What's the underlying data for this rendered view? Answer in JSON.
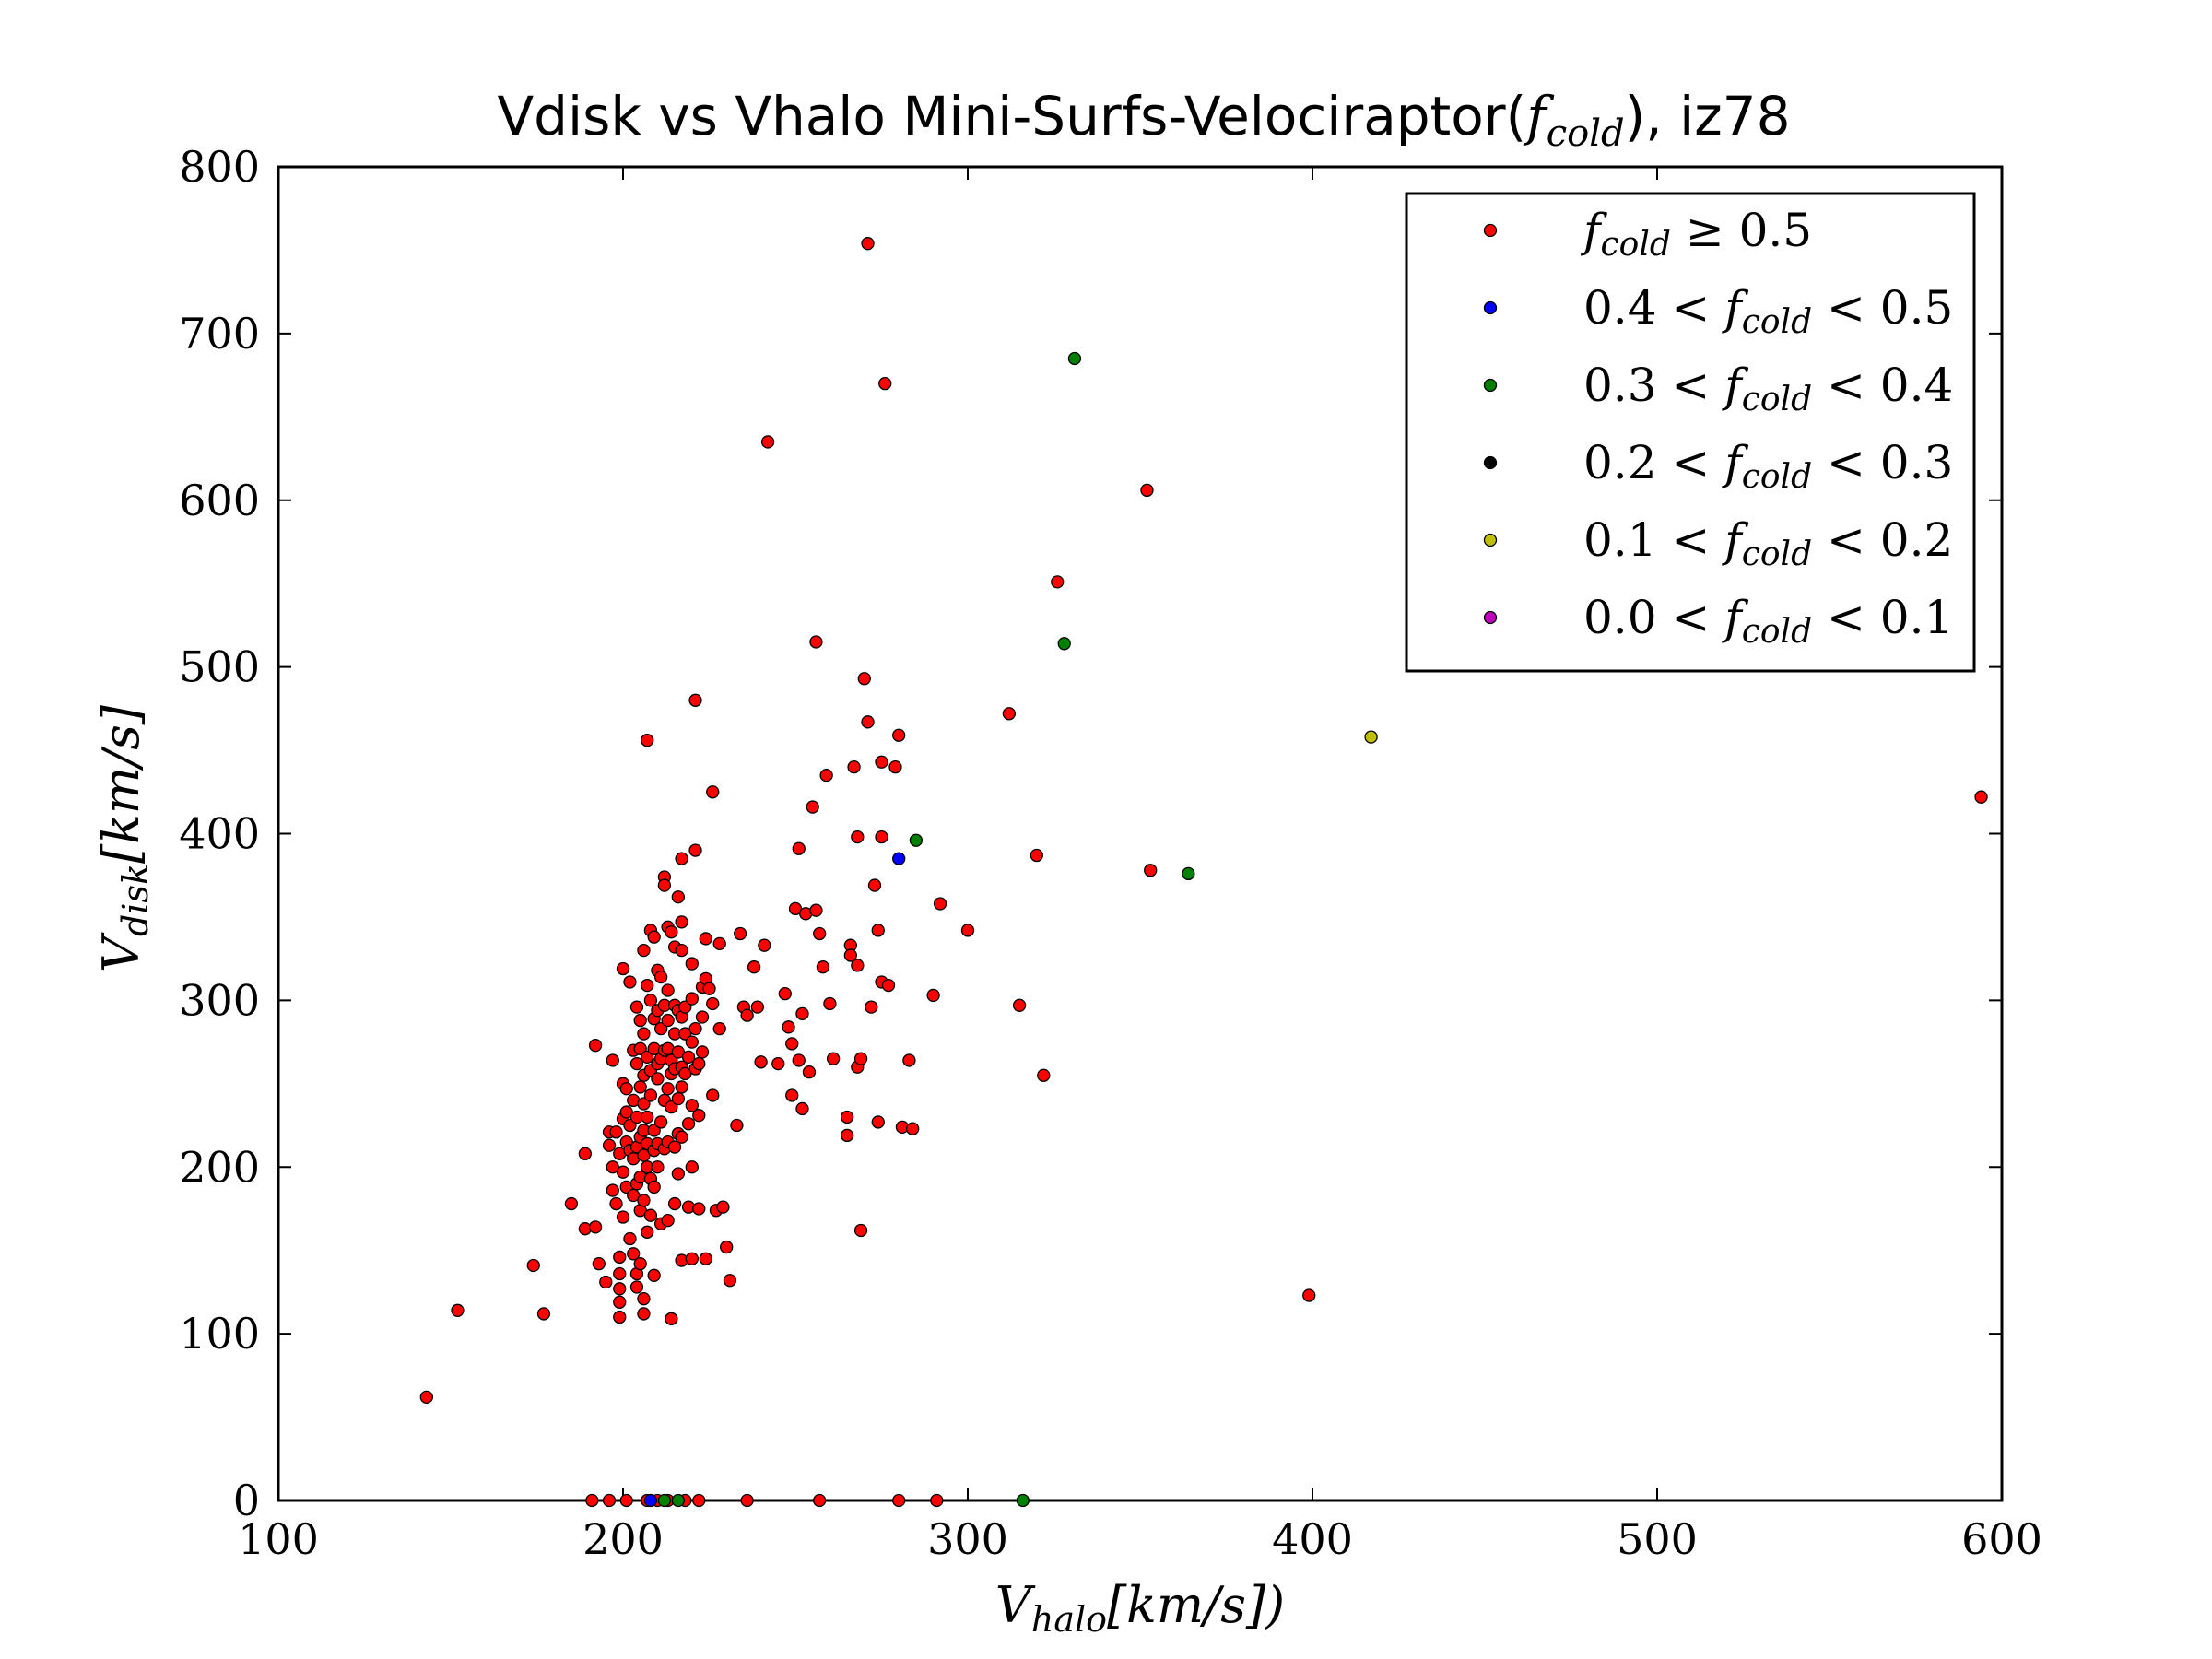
{
  "chart_data": {
    "type": "scatter",
    "title": {
      "prefix": "Vdisk vs Vhalo Mini-Surfs-Velociraptor(",
      "var": "f",
      "sub": "cold",
      "suffix": "), iz78"
    },
    "xlabel": {
      "var": "V",
      "sub": "halo",
      "unit": "[km/s])"
    },
    "ylabel": {
      "var": "V",
      "sub": "disk",
      "unit": "[km/s]"
    },
    "xlim": [
      100,
      600
    ],
    "ylim": [
      0,
      800
    ],
    "xticks": [
      "100",
      "200",
      "300",
      "400",
      "500",
      "600"
    ],
    "yticks": [
      "0",
      "100",
      "200",
      "300",
      "400",
      "500",
      "600",
      "700",
      "800"
    ],
    "xtick_values": [
      100,
      200,
      300,
      400,
      500,
      600
    ],
    "ytick_values": [
      0,
      100,
      200,
      300,
      400,
      500,
      600,
      700,
      800
    ],
    "grid": false,
    "legend_position": "top-right",
    "series": [
      {
        "name": "fcold ≥ 0.5",
        "label": {
          "pre": "",
          "var": "f",
          "sub": "cold",
          "post": " ≥ 0.5"
        },
        "color": "#ff0000",
        "points": [
          [
            143,
            62
          ],
          [
            152,
            114
          ],
          [
            174,
            141
          ],
          [
            177,
            112
          ],
          [
            185,
            178
          ],
          [
            189,
            163
          ],
          [
            189,
            208
          ],
          [
            192,
            164
          ],
          [
            192,
            273
          ],
          [
            193,
            142
          ],
          [
            195,
            131
          ],
          [
            196,
            221
          ],
          [
            196,
            213
          ],
          [
            197,
            264
          ],
          [
            197,
            200
          ],
          [
            197,
            186
          ],
          [
            198,
            178
          ],
          [
            198,
            221
          ],
          [
            199,
            208
          ],
          [
            199,
            146
          ],
          [
            199,
            136
          ],
          [
            199,
            127
          ],
          [
            199,
            119
          ],
          [
            199,
            110
          ],
          [
            200,
            319
          ],
          [
            200,
            250
          ],
          [
            200,
            229
          ],
          [
            200,
            197
          ],
          [
            200,
            170
          ],
          [
            201,
            247
          ],
          [
            201,
            233
          ],
          [
            201,
            215
          ],
          [
            201,
            188
          ],
          [
            202,
            311
          ],
          [
            202,
            225
          ],
          [
            202,
            210
          ],
          [
            202,
            157
          ],
          [
            203,
            270
          ],
          [
            203,
            240
          ],
          [
            203,
            205
          ],
          [
            203,
            183
          ],
          [
            203,
            148
          ],
          [
            204,
            296
          ],
          [
            204,
            262
          ],
          [
            204,
            230
          ],
          [
            204,
            212
          ],
          [
            204,
            190
          ],
          [
            204,
            136
          ],
          [
            204,
            128
          ],
          [
            205,
            288
          ],
          [
            205,
            271
          ],
          [
            205,
            248
          ],
          [
            205,
            218
          ],
          [
            205,
            194
          ],
          [
            205,
            174
          ],
          [
            205,
            142
          ],
          [
            206,
            330
          ],
          [
            206,
            280
          ],
          [
            206,
            255
          ],
          [
            206,
            238
          ],
          [
            206,
            222
          ],
          [
            206,
            207
          ],
          [
            206,
            180
          ],
          [
            206,
            121
          ],
          [
            206,
            112
          ],
          [
            207,
            456
          ],
          [
            207,
            309
          ],
          [
            207,
            266
          ],
          [
            207,
            230
          ],
          [
            207,
            214
          ],
          [
            207,
            200
          ],
          [
            207,
            161
          ],
          [
            208,
            342
          ],
          [
            208,
            300
          ],
          [
            208,
            258
          ],
          [
            208,
            243
          ],
          [
            208,
            193
          ],
          [
            208,
            171
          ],
          [
            209,
            338
          ],
          [
            209,
            289
          ],
          [
            209,
            271
          ],
          [
            209,
            222
          ],
          [
            209,
            210
          ],
          [
            209,
            188
          ],
          [
            209,
            135
          ],
          [
            210,
            318
          ],
          [
            210,
            294
          ],
          [
            210,
            262
          ],
          [
            210,
            253
          ],
          [
            210,
            214
          ],
          [
            210,
            200
          ],
          [
            211,
            314
          ],
          [
            211,
            283
          ],
          [
            211,
            265
          ],
          [
            211,
            227
          ],
          [
            211,
            166
          ],
          [
            212,
            374
          ],
          [
            212,
            369
          ],
          [
            212,
            297
          ],
          [
            212,
            270
          ],
          [
            212,
            240
          ],
          [
            212,
            211
          ],
          [
            213,
            344
          ],
          [
            213,
            306
          ],
          [
            213,
            288
          ],
          [
            213,
            271
          ],
          [
            213,
            247
          ],
          [
            213,
            215
          ],
          [
            213,
            168
          ],
          [
            214,
            341
          ],
          [
            214,
            264
          ],
          [
            214,
            256
          ],
          [
            214,
            236
          ],
          [
            214,
            109
          ],
          [
            215,
            332
          ],
          [
            215,
            297
          ],
          [
            215,
            280
          ],
          [
            215,
            259
          ],
          [
            215,
            212
          ],
          [
            215,
            178
          ],
          [
            216,
            362
          ],
          [
            216,
            294
          ],
          [
            216,
            269
          ],
          [
            216,
            241
          ],
          [
            216,
            220
          ],
          [
            216,
            196
          ],
          [
            217,
            385
          ],
          [
            217,
            347
          ],
          [
            217,
            330
          ],
          [
            217,
            290
          ],
          [
            217,
            260
          ],
          [
            217,
            248
          ],
          [
            217,
            218
          ],
          [
            217,
            144
          ],
          [
            218,
            296
          ],
          [
            218,
            280
          ],
          [
            218,
            256
          ],
          [
            219,
            266
          ],
          [
            219,
            226
          ],
          [
            219,
            176
          ],
          [
            220,
            322
          ],
          [
            220,
            301
          ],
          [
            220,
            275
          ],
          [
            220,
            237
          ],
          [
            220,
            200
          ],
          [
            220,
            145
          ],
          [
            221,
            480
          ],
          [
            221,
            390
          ],
          [
            221,
            283
          ],
          [
            221,
            259
          ],
          [
            222,
            262
          ],
          [
            222,
            231
          ],
          [
            222,
            175
          ],
          [
            223,
            308
          ],
          [
            223,
            290
          ],
          [
            223,
            269
          ],
          [
            224,
            337
          ],
          [
            224,
            313
          ],
          [
            224,
            145
          ],
          [
            225,
            307
          ],
          [
            226,
            425
          ],
          [
            226,
            298
          ],
          [
            226,
            243
          ],
          [
            227,
            174
          ],
          [
            228,
            334
          ],
          [
            228,
            283
          ],
          [
            229,
            176
          ],
          [
            230,
            152
          ],
          [
            231,
            132
          ],
          [
            233,
            225
          ],
          [
            234,
            340
          ],
          [
            235,
            296
          ],
          [
            236,
            291
          ],
          [
            238,
            320
          ],
          [
            239,
            296
          ],
          [
            240,
            263
          ],
          [
            241,
            333
          ],
          [
            242,
            635
          ],
          [
            245,
            262
          ],
          [
            247,
            304
          ],
          [
            248,
            284
          ],
          [
            249,
            274
          ],
          [
            249,
            243
          ],
          [
            250,
            355
          ],
          [
            251,
            264
          ],
          [
            251,
            391
          ],
          [
            252,
            292
          ],
          [
            252,
            235
          ],
          [
            253,
            352
          ],
          [
            254,
            257
          ],
          [
            255,
            416
          ],
          [
            256,
            354
          ],
          [
            256,
            515
          ],
          [
            257,
            340
          ],
          [
            258,
            320
          ],
          [
            259,
            435
          ],
          [
            260,
            298
          ],
          [
            261,
            265
          ],
          [
            265,
            230
          ],
          [
            265,
            219
          ],
          [
            266,
            333
          ],
          [
            266,
            327
          ],
          [
            267,
            440
          ],
          [
            268,
            398
          ],
          [
            268,
            260
          ],
          [
            268,
            321
          ],
          [
            269,
            162
          ],
          [
            269,
            265
          ],
          [
            270,
            493
          ],
          [
            271,
            467
          ],
          [
            271,
            754
          ],
          [
            272,
            296
          ],
          [
            273,
            369
          ],
          [
            274,
            342
          ],
          [
            274,
            227
          ],
          [
            275,
            443
          ],
          [
            275,
            398
          ],
          [
            275,
            311
          ],
          [
            276,
            670
          ],
          [
            277,
            309
          ],
          [
            279,
            440
          ],
          [
            280,
            459
          ],
          [
            281,
            224
          ],
          [
            283,
            264
          ],
          [
            284,
            223
          ],
          [
            290,
            303
          ],
          [
            292,
            358
          ],
          [
            300,
            342
          ],
          [
            312,
            472
          ],
          [
            315,
            297
          ],
          [
            320,
            387
          ],
          [
            322,
            255
          ],
          [
            326,
            551
          ],
          [
            352,
            606
          ],
          [
            353,
            378
          ],
          [
            399,
            123
          ],
          [
            594,
            422
          ]
        ],
        "zero_points": [
          191,
          196,
          201,
          207,
          210,
          213,
          218,
          222,
          236,
          257,
          280,
          291
        ]
      },
      {
        "name": "0.4 < fcold < 0.5",
        "label": {
          "pre": "0.4 < ",
          "var": "f",
          "sub": "cold",
          "post": " < 0.5"
        },
        "color": "#0000ff",
        "points": [
          [
            280,
            385
          ]
        ],
        "zero_points": [
          208
        ]
      },
      {
        "name": "0.3 < fcold < 0.4",
        "label": {
          "pre": "0.3 < ",
          "var": "f",
          "sub": "cold",
          "post": " < 0.4"
        },
        "color": "#008000",
        "points": [
          [
            285,
            396
          ],
          [
            328,
            514
          ],
          [
            331,
            685
          ],
          [
            364,
            376
          ]
        ],
        "zero_points": [
          212,
          216,
          316
        ]
      },
      {
        "name": "0.2 < fcold < 0.3",
        "label": {
          "pre": "0.2 < ",
          "var": "f",
          "sub": "cold",
          "post": " < 0.3"
        },
        "color": "#000000",
        "points": [],
        "zero_points": []
      },
      {
        "name": "0.1 < fcold < 0.2",
        "label": {
          "pre": "0.1 < ",
          "var": "f",
          "sub": "cold",
          "post": " < 0.2"
        },
        "color": "#bfbf00",
        "points": [
          [
            417,
            458
          ]
        ],
        "zero_points": []
      },
      {
        "name": "0.0 < fcold < 0.1",
        "label": {
          "pre": "0.0 < ",
          "var": "f",
          "sub": "cold",
          "post": " < 0.1"
        },
        "color": "#bf00bf",
        "points": [],
        "zero_points": []
      }
    ]
  }
}
